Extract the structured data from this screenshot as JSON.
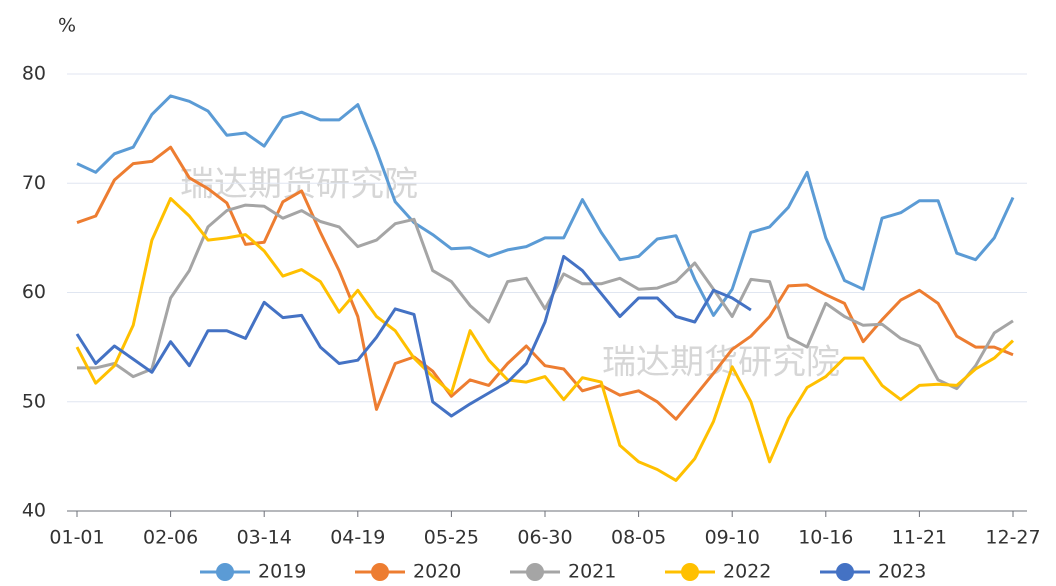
{
  "chart_data": {
    "type": "line",
    "y_label": "%",
    "watermarks": [
      "瑞达期货研究院",
      "瑞达期货研究院"
    ],
    "categories": [
      "01-01",
      null,
      null,
      null,
      null,
      "02-06",
      null,
      null,
      null,
      null,
      "03-14",
      null,
      null,
      null,
      null,
      "04-19",
      null,
      null,
      null,
      null,
      "05-25",
      null,
      null,
      null,
      null,
      "06-30",
      null,
      null,
      null,
      null,
      "08-05",
      null,
      null,
      null,
      null,
      "09-10",
      null,
      null,
      null,
      null,
      "10-16",
      null,
      null,
      null,
      null,
      "11-21",
      null,
      null,
      null,
      null,
      "12-27"
    ],
    "ylim": [
      40,
      80
    ],
    "yticks": [
      40,
      50,
      60,
      70,
      80
    ],
    "grid": true,
    "series": [
      {
        "name": "2019",
        "color": "#5b9bd5",
        "values": [
          71.8,
          71,
          72.7,
          73.3,
          76.3,
          78,
          77.5,
          76.6,
          74.4,
          74.6,
          73.4,
          76,
          76.5,
          75.8,
          75.8,
          77.2,
          73,
          68.3,
          66.4,
          65.3,
          64,
          64.1,
          63.3,
          63.9,
          64.2,
          65,
          65,
          68.5,
          65.5,
          63,
          63.3,
          64.9,
          65.2,
          61.2,
          57.9,
          60.3,
          65.5,
          66,
          67.8,
          71,
          65,
          61.1,
          60.3,
          66.8,
          67.3,
          68.4,
          68.4,
          63.6,
          63,
          65,
          68.7
        ]
      },
      {
        "name": "2020",
        "color": "#ed7d31",
        "values": [
          66.4,
          67,
          70.3,
          71.8,
          72,
          73.3,
          70.5,
          69.5,
          68.2,
          64.4,
          64.6,
          68.3,
          69.3,
          65.5,
          62,
          57.8,
          49.3,
          53.5,
          54.1,
          52.8,
          50.5,
          52,
          51.5,
          53.5,
          55.1,
          53.3,
          53,
          51,
          51.5,
          50.6,
          51,
          50,
          48.4,
          50.5,
          52.6,
          54.8,
          56,
          57.8,
          60.6,
          60.7,
          59.8,
          59,
          55.5,
          57.5,
          59.3,
          60.2,
          59,
          56,
          55,
          55,
          54.3
        ]
      },
      {
        "name": "2021",
        "color": "#a5a5a5",
        "values": [
          53.1,
          53.1,
          53.5,
          52.3,
          53,
          59.5,
          62,
          66,
          67.5,
          68,
          67.9,
          66.8,
          67.5,
          66.5,
          66,
          64.2,
          64.8,
          66.3,
          66.7,
          62,
          61,
          58.8,
          57.3,
          61,
          61.3,
          58.5,
          61.7,
          60.8,
          60.8,
          61.3,
          60.3,
          60.4,
          61,
          62.7,
          60.3,
          57.8,
          61.2,
          61,
          55.9,
          55,
          59,
          57.8,
          57,
          57.1,
          55.8,
          55.1,
          52,
          51.2,
          53.3,
          56.3,
          57.4
        ]
      },
      {
        "name": "2022",
        "color": "#ffc000",
        "values": [
          55,
          51.7,
          53.3,
          57,
          64.8,
          68.6,
          67,
          64.8,
          65,
          65.3,
          63.8,
          61.5,
          62.1,
          61,
          58.2,
          60.2,
          57.8,
          56.5,
          54,
          52.3,
          50.8,
          56.5,
          53.8,
          52,
          51.8,
          52.3,
          50.2,
          52.2,
          51.8,
          46,
          44.5,
          43.8,
          42.8,
          44.8,
          48.2,
          53.2,
          50,
          44.5,
          48.5,
          51.3,
          52.3,
          54,
          54,
          51.5,
          50.2,
          51.5,
          51.6,
          51.5,
          53,
          54,
          55.6
        ]
      },
      {
        "name": "2023",
        "color": "#4472c4",
        "values": [
          56.2,
          53.5,
          55.1,
          53.9,
          52.7,
          55.5,
          53.3,
          56.5,
          56.5,
          55.8,
          59.1,
          57.7,
          57.9,
          55,
          53.5,
          53.8,
          55.9,
          58.5,
          58,
          50,
          48.7,
          49.8,
          50.8,
          51.8,
          53.5,
          57.3,
          63.3,
          62,
          59.9,
          57.8,
          59.5,
          59.5,
          57.8,
          57.3,
          60.2,
          59.5,
          58.4,
          null,
          null,
          null,
          null,
          null,
          null,
          null,
          null,
          null,
          null,
          null,
          null,
          null,
          null
        ]
      }
    ]
  }
}
